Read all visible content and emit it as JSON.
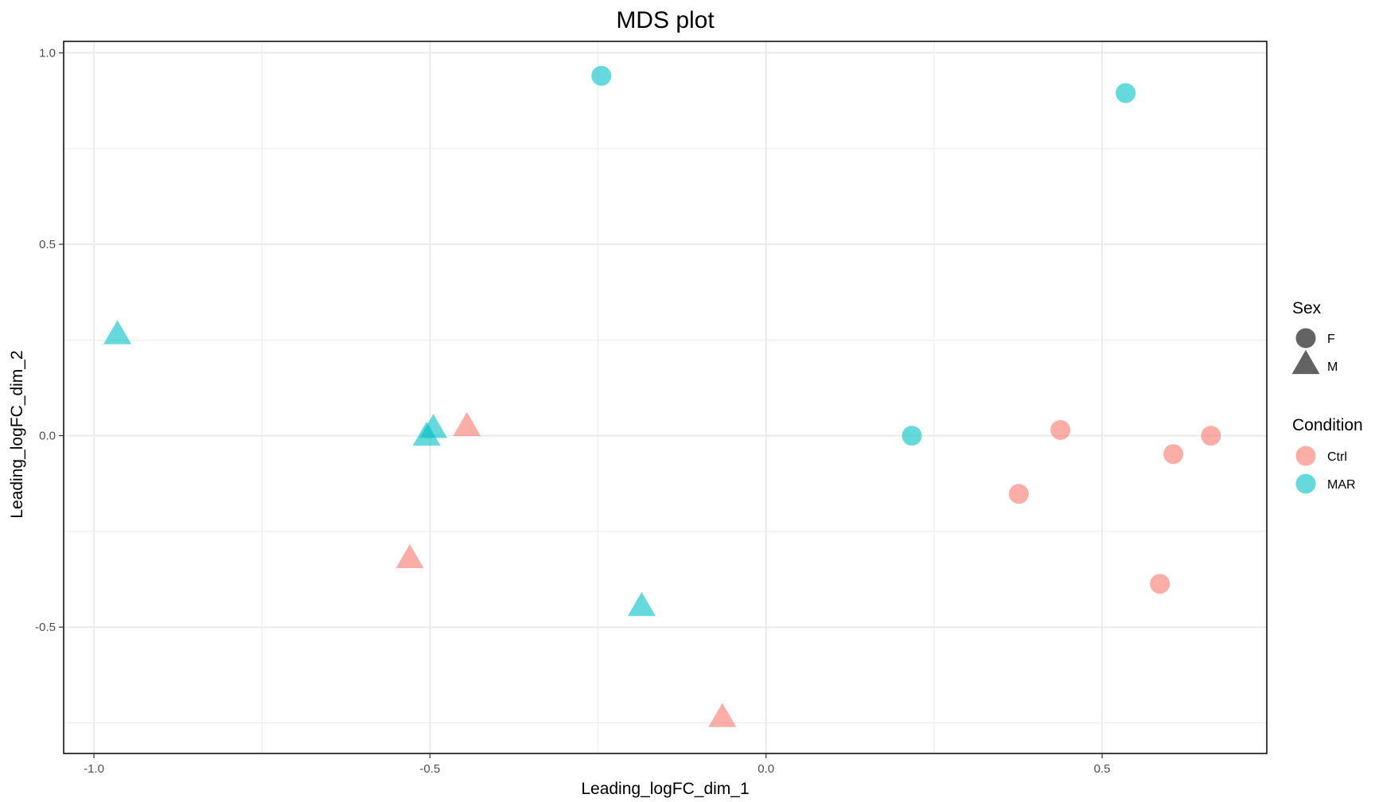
{
  "chart_data": {
    "type": "scatter",
    "title": "MDS plot",
    "xlabel": "Leading_logFC_dim_1",
    "ylabel": "Leading_logFC_dim_2",
    "xlim": [
      -1.045,
      0.745
    ],
    "ylim": [
      -0.83,
      1.03
    ],
    "x_ticks": [
      -1.0,
      -0.5,
      0.0,
      0.5
    ],
    "x_tick_labels": [
      "-1.0",
      "-0.5",
      "0.0",
      "0.5"
    ],
    "y_ticks": [
      -0.5,
      0.0,
      0.5,
      1.0
    ],
    "y_tick_labels": [
      "-0.5",
      "0.0",
      "0.5",
      "1.0"
    ],
    "grid": true,
    "legend_position": "right",
    "legend": {
      "shape": {
        "title": "Sex",
        "entries": [
          {
            "label": "F",
            "shape": "circle"
          },
          {
            "label": "M",
            "shape": "triangle"
          }
        ]
      },
      "color": {
        "title": "Condition",
        "entries": [
          {
            "label": "Ctrl",
            "color": "#F8766D"
          },
          {
            "label": "MAR",
            "color": "#00BFC4"
          }
        ]
      }
    },
    "points": [
      {
        "x": -0.245,
        "y": 0.94,
        "sex": "F",
        "condition": "MAR"
      },
      {
        "x": 0.535,
        "y": 0.895,
        "sex": "F",
        "condition": "MAR"
      },
      {
        "x": -0.965,
        "y": 0.26,
        "sex": "M",
        "condition": "MAR"
      },
      {
        "x": -0.495,
        "y": 0.015,
        "sex": "M",
        "condition": "MAR"
      },
      {
        "x": -0.505,
        "y": -0.005,
        "sex": "M",
        "condition": "MAR"
      },
      {
        "x": -0.445,
        "y": 0.02,
        "sex": "M",
        "condition": "Ctrl"
      },
      {
        "x": 0.217,
        "y": 0.0,
        "sex": "F",
        "condition": "MAR"
      },
      {
        "x": 0.438,
        "y": 0.015,
        "sex": "F",
        "condition": "Ctrl"
      },
      {
        "x": 0.662,
        "y": 0.0,
        "sex": "F",
        "condition": "Ctrl"
      },
      {
        "x": 0.606,
        "y": -0.048,
        "sex": "F",
        "condition": "Ctrl"
      },
      {
        "x": 0.376,
        "y": -0.152,
        "sex": "F",
        "condition": "Ctrl"
      },
      {
        "x": -0.53,
        "y": -0.325,
        "sex": "M",
        "condition": "Ctrl"
      },
      {
        "x": 0.586,
        "y": -0.387,
        "sex": "F",
        "condition": "Ctrl"
      },
      {
        "x": -0.185,
        "y": -0.45,
        "sex": "M",
        "condition": "MAR"
      },
      {
        "x": -0.065,
        "y": -0.74,
        "sex": "M",
        "condition": "Ctrl"
      }
    ],
    "colors": {
      "Ctrl": "#F8766D",
      "MAR": "#00BFC4",
      "legend_shape_fill": "#636363",
      "grid": "#ebebeb",
      "panel_border": "#000000"
    }
  }
}
